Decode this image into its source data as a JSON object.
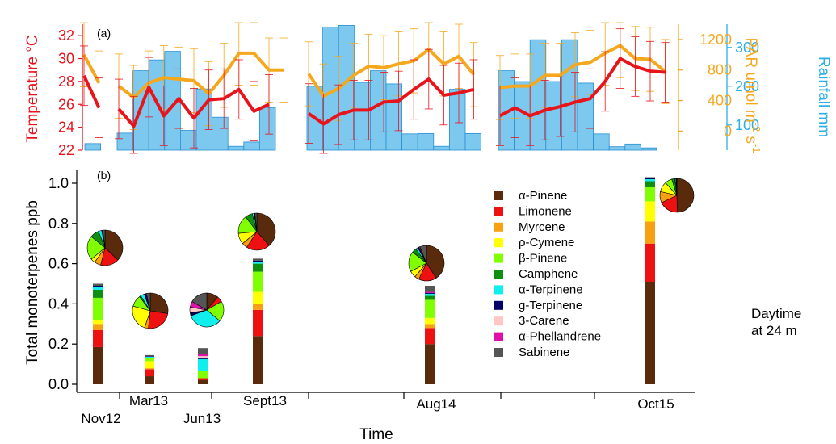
{
  "colors": {
    "temperature": "#e8141c",
    "par": "#f5a81e",
    "rainfall_bar": "#7cc8ef",
    "rainfall_edge": "#2a8fd0",
    "rainfall_axis": "#29aee6"
  },
  "panel_a": {
    "label": "(a)",
    "temp_axis": {
      "title": "Temperature °C",
      "ticks": [
        22,
        24,
        26,
        28,
        30,
        32
      ],
      "range": [
        22,
        33
      ]
    },
    "par_axis": {
      "title_main": "PAR umol m",
      "title_sup1": "-2",
      "title_mid": " s",
      "title_sup2": "-1",
      "ticks": [
        0,
        400,
        800,
        1200
      ],
      "range": [
        -250,
        1400
      ]
    },
    "rain_axis": {
      "title": "Rainfall mm",
      "ticks": [
        100,
        200,
        300
      ],
      "range": [
        35,
        360
      ]
    }
  },
  "panel_b": {
    "label": "(b)",
    "y_axis": {
      "title": "Total monoterpenes ppb",
      "ticks": [
        "0.0",
        "0.2",
        "0.4",
        "0.6",
        "0.8",
        "1.0"
      ],
      "range": [
        0,
        1.05
      ]
    },
    "x_axis": {
      "title": "Time",
      "tick_labels": [
        "Nov12",
        "Mar13",
        "Jun13",
        "Sept13",
        "Aug14",
        "Oct15"
      ]
    },
    "legend": [
      "α-Pinene",
      "Limonene",
      "Myrcene",
      "ρ-Cymene",
      "β-Pinene",
      "Camphene",
      "α-Terpinene",
      "g-Terpinene",
      "3-Carene",
      "α-Phellandrene",
      "Sabinene"
    ],
    "legend_colors": [
      "#5a2a0c",
      "#ee1111",
      "#f7a011",
      "#ffff00",
      "#7fff00",
      "#0f8f0f",
      "#11eeee",
      "#000066",
      "#ffc6c6",
      "#dd11aa",
      "#555555"
    ],
    "annotation_line1": "Daytime",
    "annotation_line2": "at 24 m"
  },
  "chart_data": [
    {
      "type": "line",
      "title": "(a)",
      "series": [
        {
          "name": "Temperature °C",
          "segments": [
            [
              28.5,
              25.7
            ],
            [
              25.6,
              24.1,
              27.5,
              25.0,
              26.5,
              24.8,
              26.4,
              26.5,
              27.3,
              25.4,
              26.0
            ],
            [
              25.2,
              24.3,
              25.1,
              25.5,
              25.5,
              26.2,
              26.3,
              27.3,
              28.2,
              26.8,
              27.0,
              27.3
            ],
            [
              25.0,
              25.7,
              25.0,
              25.5,
              25.8,
              26.2,
              26.5,
              28.0,
              30.0,
              29.3,
              28.9,
              28.8
            ]
          ]
        },
        {
          "name": "PAR umol m-2 s-1",
          "segments": [
            [
              1000,
              630
            ],
            [
              590,
              440,
              630,
              700,
              680,
              660,
              490,
              730,
              1020,
              1020,
              800,
              800
            ],
            [
              750,
              460,
              560,
              730,
              850,
              830,
              880,
              920,
              1070,
              880,
              980,
              740
            ],
            [
              570,
              590,
              590,
              730,
              730,
              870,
              900,
              1020,
              1120,
              950,
              940,
              780
            ]
          ]
        },
        {
          "name": "Rainfall mm",
          "type": "bar",
          "segments": [
            [
              52
            ],
            [
              79,
              240,
              268,
              290,
              86,
              193,
              120,
              45,
              56,
              145
            ],
            [
              200,
              353,
              357,
              210,
              240,
              206,
              77,
              78,
              45,
              192,
              78
            ],
            [
              240,
              212,
              320,
              212,
              320,
              208,
              77,
              44,
              51,
              41
            ]
          ]
        }
      ]
    },
    {
      "type": "bar",
      "title": "(b)",
      "categories": [
        "Nov12",
        "Mar13",
        "Jun13",
        "Sept13",
        "Aug14",
        "Oct15"
      ],
      "stack_order": [
        "α-Pinene",
        "Limonene",
        "Myrcene",
        "ρ-Cymene",
        "β-Pinene",
        "Camphene",
        "α-Terpinene",
        "g-Terpinene",
        "3-Carene",
        "α-Phellandrene",
        "Sabinene"
      ],
      "totals": [
        0.5,
        0.145,
        0.18,
        0.625,
        0.49,
        1.03
      ],
      "stacks": [
        [
          0.185,
          0.085,
          0.03,
          0.02,
          0.11,
          0.04,
          0.015,
          0.005,
          0.0,
          0.0,
          0.01
        ],
        [
          0.04,
          0.035,
          0.005,
          0.035,
          0.015,
          0.002,
          0.005,
          0.003,
          0.0,
          0.0,
          0.005
        ],
        [
          0.02,
          0.01,
          0.0,
          0.0,
          0.035,
          0.0,
          0.06,
          0.005,
          0.01,
          0.01,
          0.03
        ],
        [
          0.24,
          0.13,
          0.03,
          0.06,
          0.1,
          0.04,
          0.01,
          0.005,
          0.0,
          0.0,
          0.01
        ],
        [
          0.2,
          0.08,
          0.02,
          0.03,
          0.09,
          0.02,
          0.01,
          0.005,
          0.0,
          0.005,
          0.03
        ],
        [
          0.51,
          0.19,
          0.11,
          0.1,
          0.07,
          0.03,
          0.01,
          0.005,
          0.0,
          0.0,
          0.005
        ]
      ]
    }
  ]
}
